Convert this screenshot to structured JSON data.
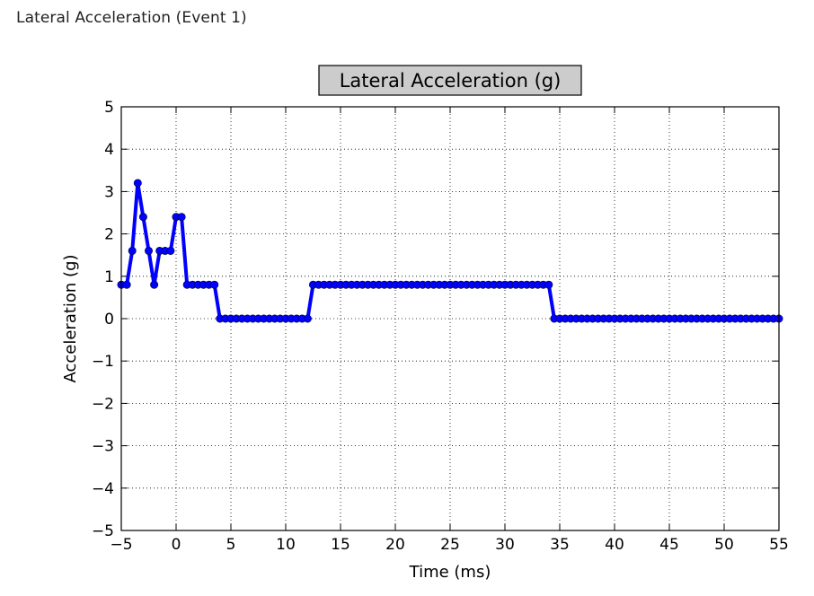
{
  "page": {
    "heading": "Lateral Acceleration (Event 1)"
  },
  "chart_data": {
    "type": "line",
    "title": "Lateral Acceleration (g)",
    "xlabel": "Time (ms)",
    "ylabel": "Acceleration (g)",
    "xlim": [
      -5,
      55
    ],
    "ylim": [
      -5,
      5
    ],
    "xticks": [
      -5,
      0,
      5,
      10,
      15,
      20,
      25,
      30,
      35,
      40,
      45,
      50,
      55
    ],
    "yticks": [
      -5,
      -4,
      -3,
      -2,
      -1,
      0,
      1,
      2,
      3,
      4,
      5
    ],
    "grid": true,
    "line_color": "#0000ff",
    "series": [
      {
        "x": [
          -5,
          -4.5,
          -4,
          -3.5,
          -3,
          -2.5,
          -2,
          -1.5,
          -1,
          -0.5,
          0,
          0.5,
          1,
          1.5,
          2,
          2.5,
          3,
          3.5,
          4,
          4.5,
          5,
          5.5,
          6,
          6.5,
          7,
          7.5,
          8,
          8.5,
          9,
          9.5,
          10,
          10.5,
          11,
          11.5,
          12,
          12.5,
          13,
          13.5,
          14,
          14.5,
          15,
          15.5,
          16,
          16.5,
          17,
          17.5,
          18,
          18.5,
          19,
          19.5,
          20,
          20.5,
          21,
          21.5,
          22,
          22.5,
          23,
          23.5,
          24,
          24.5,
          25,
          25.5,
          26,
          26.5,
          27,
          27.5,
          28,
          28.5,
          29,
          29.5,
          30,
          30.5,
          31,
          31.5,
          32,
          32.5,
          33,
          33.5,
          34,
          34.5,
          35,
          35.5,
          36,
          36.5,
          37,
          37.5,
          38,
          38.5,
          39,
          39.5,
          40,
          40.5,
          41,
          41.5,
          42,
          42.5,
          43,
          43.5,
          44,
          44.5,
          45,
          45.5,
          46,
          46.5,
          47,
          47.5,
          48,
          48.5,
          49,
          49.5,
          50,
          50.5,
          51,
          51.5,
          52,
          52.5,
          53,
          53.5,
          54,
          54.5,
          55
        ],
        "y": [
          0.8,
          0.8,
          1.6,
          3.2,
          2.4,
          1.6,
          0.8,
          1.6,
          1.6,
          1.6,
          2.4,
          2.4,
          0.8,
          0.8,
          0.8,
          0.8,
          0.8,
          0.8,
          0,
          0,
          0,
          0,
          0,
          0,
          0,
          0,
          0,
          0,
          0,
          0,
          0,
          0,
          0,
          0,
          0,
          0.8,
          0.8,
          0.8,
          0.8,
          0.8,
          0.8,
          0.8,
          0.8,
          0.8,
          0.8,
          0.8,
          0.8,
          0.8,
          0.8,
          0.8,
          0.8,
          0.8,
          0.8,
          0.8,
          0.8,
          0.8,
          0.8,
          0.8,
          0.8,
          0.8,
          0.8,
          0.8,
          0.8,
          0.8,
          0.8,
          0.8,
          0.8,
          0.8,
          0.8,
          0.8,
          0.8,
          0.8,
          0.8,
          0.8,
          0.8,
          0.8,
          0.8,
          0.8,
          0.8,
          0,
          0,
          0,
          0,
          0,
          0,
          0,
          0,
          0,
          0,
          0,
          0,
          0,
          0,
          0,
          0,
          0,
          0,
          0,
          0,
          0,
          0,
          0,
          0,
          0,
          0,
          0,
          0,
          0,
          0,
          0,
          0,
          0,
          0,
          0,
          0,
          0,
          0,
          0,
          0,
          0,
          0
        ]
      }
    ]
  }
}
